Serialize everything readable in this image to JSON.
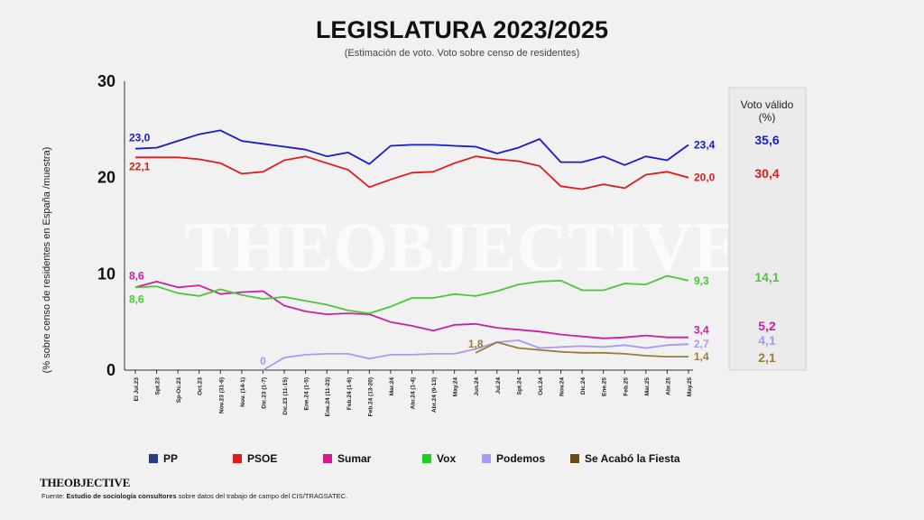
{
  "brand": "THEOBJECTIVE",
  "watermark": "THEOBJECTIVE",
  "source_bold": "Estudio de sociología consultores",
  "source_rest": "sobre datos del trabajo de campo del CIS/TRAGSATEC.",
  "source_prefix": "Fuente:",
  "valid_vote_header_line1": "Voto válido",
  "valid_vote_header_line2": "(%)",
  "chart_data": {
    "type": "line",
    "title": "LEGISLATURA 2023/2025",
    "subtitle": "(Estimación de voto. Voto sobre  censo de residentes)",
    "xlabel": "",
    "ylabel": "(% sobre censo de residentes en España /muestra)",
    "ylim": [
      0,
      30
    ],
    "yticks": [
      "0",
      "10",
      "20",
      "30"
    ],
    "grid": false,
    "legend_position": "bottom",
    "categories": [
      "El Jul.23",
      "Spt.23",
      "Sp-Oc.23",
      "Oct.23",
      "Nov.23 (31-6)",
      "Nov. (14-1)",
      "Dic.23 (1-7)",
      "Dic.23 (11-15)",
      "Ene.24 (1-5)",
      "Ene.24 (11-23)",
      "Feb.24 (1-6)",
      "Feb.24 (13-20)",
      "Mar.24",
      "Abr.24 (1-4)",
      "Abr.24 (9-13)",
      "May.24",
      "Jun.24",
      "Jul.24",
      "Spt.24",
      "Oct.24",
      "Nov.24",
      "Dic.24",
      "Ene.25",
      "Feb.25",
      "Mar.25",
      "Abr.25",
      "May.25"
    ],
    "x_index": [
      0,
      1,
      2,
      3,
      4,
      5,
      6,
      7,
      8,
      9,
      10,
      11,
      12,
      13,
      14,
      15,
      16,
      17,
      18,
      19,
      20,
      21,
      22,
      23,
      24,
      25,
      26
    ],
    "series": [
      {
        "name": "PP",
        "color": "#1a1ad0",
        "legend_color": "#1f3c88",
        "values": [
          23.0,
          23.1,
          23.8,
          24.5,
          24.9,
          23.8,
          23.5,
          23.2,
          22.9,
          22.2,
          22.6,
          21.4,
          23.3,
          23.4,
          23.4,
          23.3,
          23.2,
          22.5,
          23.1,
          24.0,
          21.6,
          21.6,
          22.2,
          21.3,
          22.2,
          21.8,
          23.4
        ],
        "start_label": "23,0",
        "end_label": "23,4",
        "valid_vote": "35,6"
      },
      {
        "name": "PSOE",
        "color": "#e01c1c",
        "legend_color": "#e01c1c",
        "values": [
          22.1,
          22.1,
          22.1,
          21.9,
          21.5,
          20.4,
          20.6,
          21.8,
          22.2,
          21.5,
          20.8,
          19.0,
          19.8,
          20.5,
          20.6,
          21.5,
          22.2,
          21.9,
          21.7,
          21.2,
          19.1,
          18.8,
          19.3,
          18.9,
          20.3,
          20.6,
          20.0
        ],
        "start_label": "22,1",
        "end_label": "20,0",
        "valid_vote": "30,4"
      },
      {
        "name": "Sumar",
        "color": "#cc1fa3",
        "legend_color": "#d11a8c",
        "values": [
          8.6,
          9.2,
          8.6,
          8.8,
          7.9,
          8.1,
          8.2,
          6.7,
          6.1,
          5.8,
          5.9,
          5.8,
          5.0,
          4.6,
          4.1,
          4.7,
          4.8,
          4.4,
          4.2,
          4.0,
          3.7,
          3.5,
          3.3,
          3.4,
          3.6,
          3.4,
          3.4
        ],
        "start_label": "8,6",
        "end_label": "3,4",
        "valid_vote": "5,2"
      },
      {
        "name": "Vox",
        "color": "#4cc63a",
        "legend_color": "#22cc22",
        "values": [
          8.6,
          8.7,
          8.0,
          7.7,
          8.4,
          7.8,
          7.4,
          7.6,
          7.2,
          6.8,
          6.2,
          5.9,
          6.6,
          7.5,
          7.5,
          7.9,
          7.7,
          8.2,
          8.9,
          9.2,
          9.3,
          8.3,
          8.3,
          9.0,
          8.9,
          9.8,
          9.3
        ],
        "start_label": "8,6",
        "end_label": "9,3",
        "valid_vote": "14,1"
      },
      {
        "name": "Podemos",
        "color": "#a99af0",
        "legend_color": "#a59cf2",
        "values": [
          null,
          null,
          null,
          null,
          null,
          null,
          0.0,
          1.3,
          1.6,
          1.7,
          1.7,
          1.2,
          1.6,
          1.6,
          1.7,
          1.7,
          2.2,
          2.9,
          3.1,
          2.3,
          2.4,
          2.5,
          2.4,
          2.6,
          2.3,
          2.6,
          2.7
        ],
        "start_label": "0",
        "end_label": "2,7",
        "valid_vote": "4,1"
      },
      {
        "name": "Se Acabó la Fiesta",
        "color": "#9a7b3a",
        "legend_color": "#6b4c16",
        "values": [
          null,
          null,
          null,
          null,
          null,
          null,
          null,
          null,
          null,
          null,
          null,
          null,
          null,
          null,
          null,
          null,
          1.8,
          2.9,
          2.3,
          2.1,
          1.9,
          1.8,
          1.8,
          1.7,
          1.5,
          1.4,
          1.4
        ],
        "start_label": "1,8",
        "end_label": "1,4",
        "valid_vote": "2,1"
      }
    ]
  }
}
